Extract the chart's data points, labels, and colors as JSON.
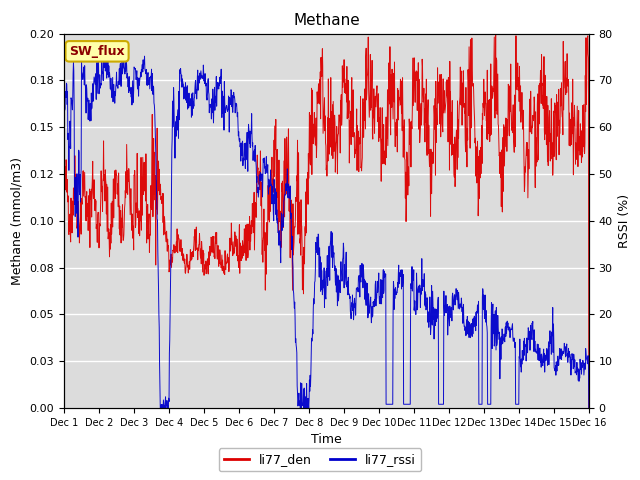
{
  "title": "Methane",
  "xlabel": "Time",
  "ylabel_left": "Methane (mmol/m3)",
  "ylabel_right": "RSSI (%)",
  "ylim_left": [
    0.0,
    0.2
  ],
  "ylim_right": [
    0,
    80
  ],
  "xlim": [
    0,
    15
  ],
  "xtick_labels": [
    "Dec 1",
    "Dec 2",
    "Dec 3",
    "Dec 4",
    "Dec 5",
    "Dec 6",
    "Dec 7",
    "Dec 8",
    "Dec 9",
    "Dec 10",
    "Dec 11",
    "Dec 12",
    "Dec 13",
    "Dec 14",
    "Dec 15",
    "Dec 16"
  ],
  "color_red": "#dd0000",
  "color_blue": "#0000cc",
  "bg_color": "#dcdcdc",
  "legend_box_label": "SW_flux",
  "legend_entries": [
    "li77_den",
    "li77_rssi"
  ],
  "title_fontsize": 11,
  "axis_label_fontsize": 9,
  "tick_fontsize": 8,
  "sw_flux_facecolor": "#ffffaa",
  "sw_flux_edgecolor": "#ccaa00",
  "sw_flux_textcolor": "#8b0000"
}
